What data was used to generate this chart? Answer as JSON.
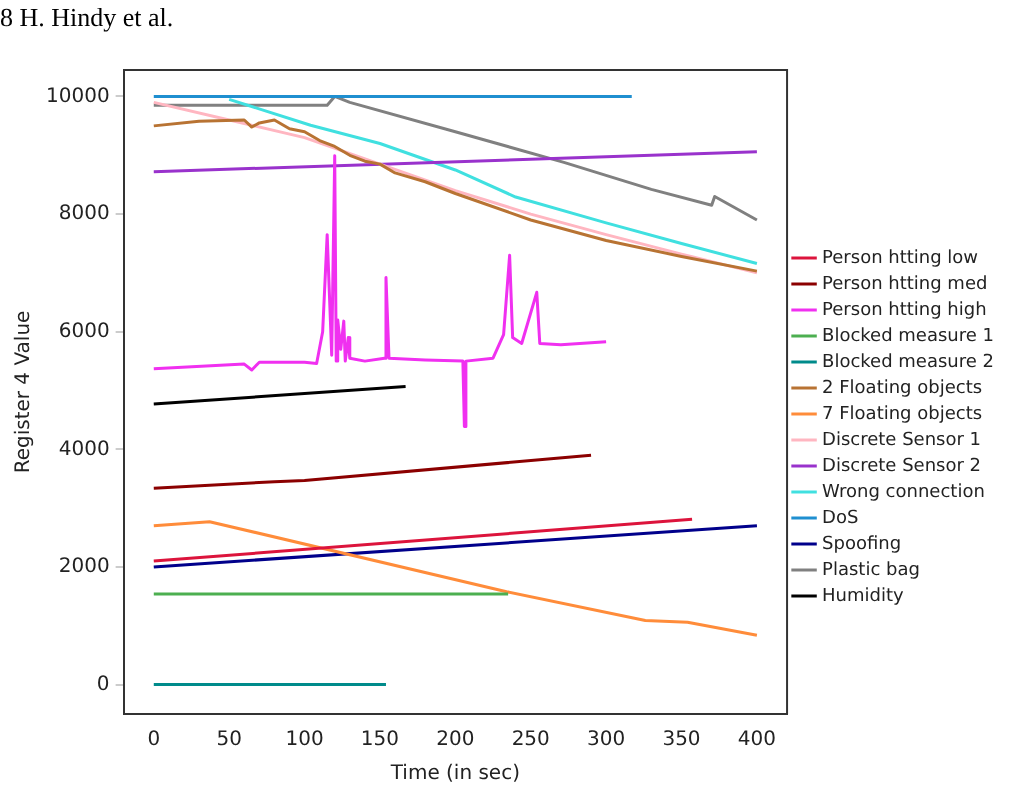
{
  "chart_data": {
    "type": "line",
    "xlabel": "Time (in sec)",
    "ylabel": "Register 4 Value",
    "xlim": [
      -20,
      420
    ],
    "ylim": [
      -500,
      10450
    ],
    "xticks": [
      0,
      50,
      100,
      150,
      200,
      250,
      300,
      350,
      400
    ],
    "yticks": [
      0,
      2000,
      4000,
      6000,
      8000,
      10000
    ],
    "grid": false,
    "legend": "right",
    "marker": "none",
    "line_style": "solid",
    "annotations": [
      "8 H. Hindy et al."
    ],
    "series": [
      {
        "name": "Person htting low",
        "color": "#dc143c",
        "x": [
          0,
          357
        ],
        "values": [
          2100,
          2810
        ]
      },
      {
        "name": "Person htting med",
        "color": "#8b0000",
        "x": [
          0,
          80,
          100,
          290
        ],
        "values": [
          3340,
          3450,
          3470,
          3900
        ]
      },
      {
        "name": "Person htting high",
        "color": "#f030f0",
        "x": [
          0,
          60,
          65,
          70,
          100,
          108,
          112,
          115,
          118,
          120,
          121,
          122,
          124,
          126,
          127,
          129,
          130,
          140,
          153,
          154,
          156,
          180,
          205,
          206,
          207,
          225,
          232,
          236,
          238,
          244,
          254,
          256,
          270,
          300
        ],
        "values": [
          5370,
          5450,
          5350,
          5480,
          5480,
          5460,
          6000,
          7650,
          5600,
          8990,
          5500,
          6200,
          5700,
          6180,
          5500,
          5900,
          5550,
          5500,
          5550,
          6920,
          5550,
          5520,
          5500,
          4390,
          5500,
          5550,
          5950,
          7300,
          5900,
          5800,
          6670,
          5800,
          5780,
          5830
        ]
      },
      {
        "name": "Blocked measure 1",
        "color": "#4caf50",
        "x": [
          0,
          235
        ],
        "values": [
          1540,
          1540
        ]
      },
      {
        "name": "Blocked measure 2",
        "color": "#008b8b",
        "x": [
          0,
          154
        ],
        "values": [
          0,
          0
        ]
      },
      {
        "name": "2 Floating objects",
        "color": "#b87333",
        "x": [
          0,
          30,
          60,
          65,
          70,
          80,
          90,
          100,
          110,
          120,
          130,
          140,
          150,
          160,
          180,
          200,
          250,
          300,
          350,
          400
        ],
        "values": [
          9500,
          9580,
          9600,
          9480,
          9550,
          9600,
          9450,
          9400,
          9250,
          9150,
          9000,
          8900,
          8850,
          8700,
          8550,
          8350,
          7900,
          7550,
          7280,
          7030
        ]
      },
      {
        "name": "7 Floating objects",
        "color": "#ff8c3a",
        "x": [
          0,
          37,
          234,
          326,
          354,
          400
        ],
        "values": [
          2700,
          2770,
          1580,
          1090,
          1060,
          840
        ]
      },
      {
        "name": "Discrete Sensor 1",
        "color": "#ffb6c1",
        "x": [
          0,
          50,
          100,
          150,
          200,
          250,
          300,
          350,
          400
        ],
        "values": [
          9900,
          9600,
          9300,
          8850,
          8400,
          8000,
          7650,
          7320,
          7000
        ]
      },
      {
        "name": "Discrete Sensor 2",
        "color": "#9932cc",
        "x": [
          0,
          400
        ],
        "values": [
          8720,
          9060
        ]
      },
      {
        "name": "Wrong connection",
        "color": "#40e0e0",
        "x": [
          50,
          104,
          150,
          200,
          240,
          300,
          350,
          400
        ],
        "values": [
          9950,
          9510,
          9200,
          8750,
          8290,
          7850,
          7500,
          7160
        ]
      },
      {
        "name": "DoS",
        "color": "#1f8fd0",
        "x": [
          0,
          317
        ],
        "values": [
          10000,
          10000
        ]
      },
      {
        "name": "Spoofing",
        "color": "#00008b",
        "x": [
          0,
          400
        ],
        "values": [
          2000,
          2700
        ]
      },
      {
        "name": "Plastic bag",
        "color": "#808080",
        "x": [
          0,
          115,
          120,
          130,
          200,
          272,
          330,
          370,
          372,
          400
        ],
        "values": [
          9850,
          9850,
          10000,
          9900,
          9400,
          8880,
          8420,
          8150,
          8300,
          7900
        ]
      },
      {
        "name": "Humidity",
        "color": "#000000",
        "x": [
          0,
          167
        ],
        "values": [
          4770,
          5070
        ]
      }
    ]
  }
}
